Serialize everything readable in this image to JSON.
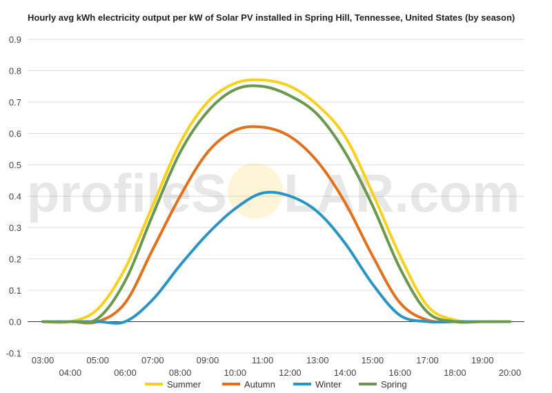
{
  "chart_data": {
    "type": "line",
    "title": "Hourly avg kWh electricity output per kW of Solar PV installed in Spring Hill, Tennessee, United States (by season)",
    "watermark": {
      "left": "profileS",
      "right": "LAR.com",
      "sun_color": "#f5c518"
    },
    "x": [
      "03:00",
      "04:00",
      "05:00",
      "06:00",
      "07:00",
      "08:00",
      "09:00",
      "10:00",
      "11:00",
      "12:00",
      "13:00",
      "14:00",
      "15:00",
      "16:00",
      "17:00",
      "18:00",
      "19:00",
      "20:00"
    ],
    "ylim": [
      -0.1,
      0.9
    ],
    "yticks": [
      "-0.1",
      "0.0",
      "0.1",
      "0.2",
      "0.3",
      "0.4",
      "0.5",
      "0.6",
      "0.7",
      "0.8",
      "0.9"
    ],
    "grid": true,
    "legend_position": "bottom",
    "series": [
      {
        "name": "Summer",
        "color": "#f7d11c",
        "values": [
          0.0,
          0.0,
          0.04,
          0.17,
          0.37,
          0.57,
          0.7,
          0.76,
          0.77,
          0.75,
          0.69,
          0.59,
          0.41,
          0.21,
          0.05,
          0.005,
          0.0,
          0.0
        ]
      },
      {
        "name": "Autumn",
        "color": "#e2711d",
        "values": [
          0.0,
          0.0,
          0.0,
          0.06,
          0.23,
          0.4,
          0.54,
          0.61,
          0.62,
          0.59,
          0.51,
          0.38,
          0.21,
          0.06,
          0.005,
          0.0,
          0.0,
          0.0
        ]
      },
      {
        "name": "Winter",
        "color": "#2a94c4",
        "values": [
          0.0,
          0.0,
          0.0,
          0.0,
          0.07,
          0.18,
          0.28,
          0.36,
          0.41,
          0.4,
          0.35,
          0.25,
          0.12,
          0.02,
          0.0,
          0.0,
          0.0,
          0.0
        ]
      },
      {
        "name": "Spring",
        "color": "#6a994e",
        "values": [
          0.0,
          0.0,
          0.01,
          0.13,
          0.34,
          0.54,
          0.67,
          0.74,
          0.75,
          0.72,
          0.66,
          0.54,
          0.37,
          0.17,
          0.03,
          0.0,
          0.0,
          0.0
        ]
      }
    ]
  }
}
